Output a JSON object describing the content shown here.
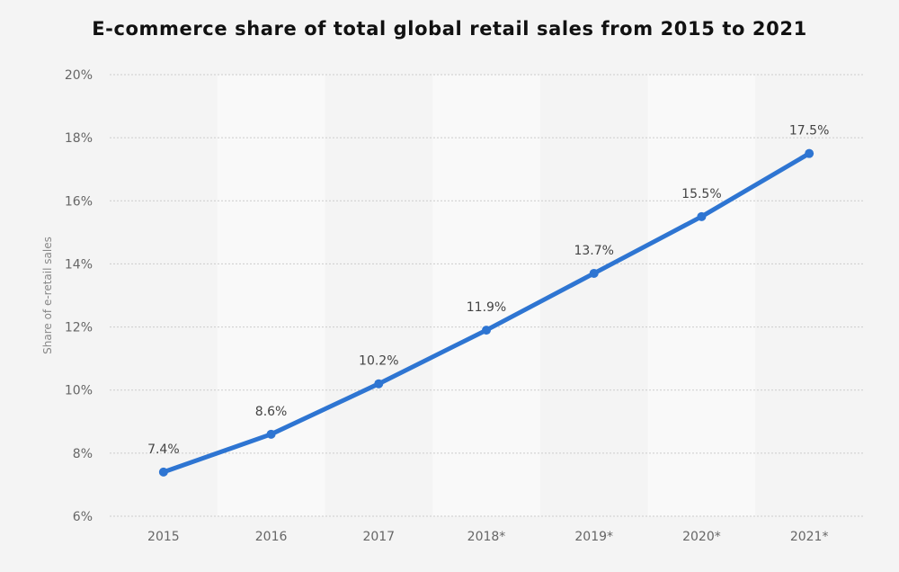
{
  "chart_data": {
    "type": "line",
    "title": "E-commerce share of total global retail sales from 2015 to 2021",
    "ylabel": "Share of e-retail sales",
    "xlabel": "",
    "categories": [
      "2015",
      "2016",
      "2017",
      "2018*",
      "2019*",
      "2020*",
      "2021*"
    ],
    "series": [
      {
        "values": [
          7.4,
          8.6,
          10.2,
          11.9,
          13.7,
          15.5,
          17.5
        ],
        "data_labels": [
          "7.4%",
          "8.6%",
          "10.2%",
          "11.9%",
          "13.7%",
          "15.5%",
          "17.5%"
        ],
        "color": "#2e75d2"
      }
    ],
    "ylim": [
      6,
      20
    ],
    "yticks": [
      {
        "value": 6,
        "label": "6%"
      },
      {
        "value": 8,
        "label": "8%"
      },
      {
        "value": 10,
        "label": "10%"
      },
      {
        "value": 12,
        "label": "12%"
      },
      {
        "value": 14,
        "label": "14%"
      },
      {
        "value": 16,
        "label": "16%"
      },
      {
        "value": 18,
        "label": "18%"
      },
      {
        "value": 20,
        "label": "20%"
      }
    ],
    "grid": true,
    "gridline_color": "#cccccc",
    "band_colors": [
      "#f4f4f4",
      "#f9f9f9"
    ],
    "legend": "none"
  }
}
